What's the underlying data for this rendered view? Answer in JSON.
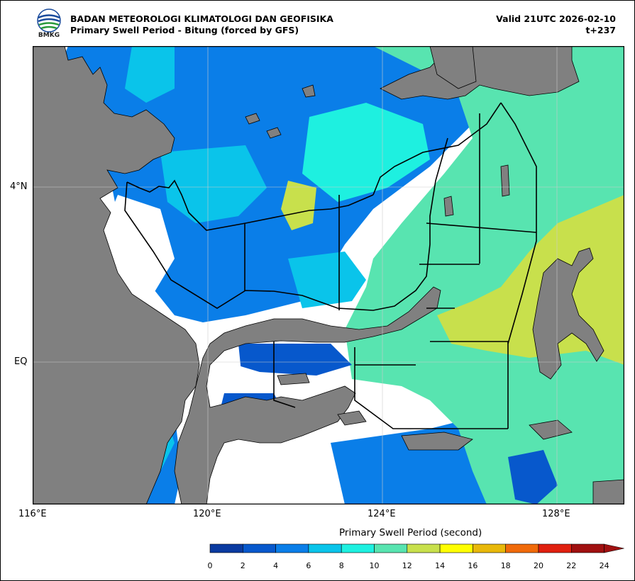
{
  "header": {
    "agency": "BADAN METEOROLOGI KLIMATOLOGI DAN GEOFISIKA",
    "subtitle": "Primary Swell Period - Bitung (forced by GFS)",
    "valid": "Valid 21UTC 2026-02-10",
    "step": "t+237",
    "logo_text": "BMKG"
  },
  "axes": {
    "lat_labels": [
      "4°N",
      "EQ"
    ],
    "lon_labels": [
      "116°E",
      "120°E",
      "124°E",
      "128°E"
    ]
  },
  "colorbar": {
    "title": "Primary Swell Period (second)",
    "ticks": [
      "0",
      "2",
      "4",
      "6",
      "8",
      "10",
      "12",
      "14",
      "16",
      "18",
      "20",
      "22",
      "24"
    ],
    "colors": [
      "#0a3aa0",
      "#0758cc",
      "#0a7ee8",
      "#0ac4ea",
      "#1ef0e0",
      "#58e4b0",
      "#c8e04c",
      "#ffff00",
      "#e8b80a",
      "#f06a0a",
      "#e0200f",
      "#a01010"
    ],
    "extend": "max"
  },
  "map_colors": {
    "land": "#808080",
    "ocean_nodata": "#ffffff"
  }
}
